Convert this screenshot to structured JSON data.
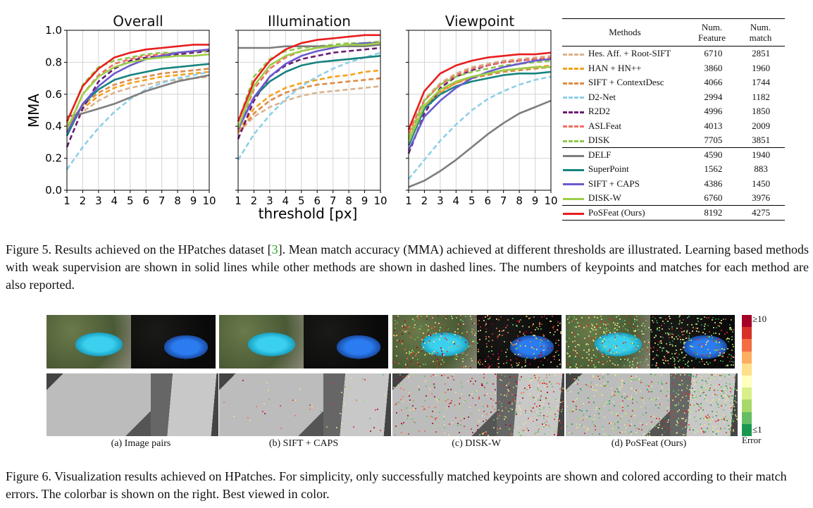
{
  "figure5": {
    "panel_titles": [
      "Overall",
      "Illumination",
      "Viewpoint"
    ],
    "y_axis_label": "MMA",
    "x_axis_label": "threshold [px]",
    "table": {
      "headers": {
        "methods": "Methods",
        "feature": [
          "Num.",
          "Feature"
        ],
        "match": [
          "Num.",
          "match"
        ]
      },
      "rows": [
        {
          "name": "Hes. Aff. + Root-SIFT",
          "feature": "6710",
          "match": "2851"
        },
        {
          "name": "HAN + HN++",
          "feature": "3860",
          "match": "1960"
        },
        {
          "name": "SIFT + ContextDesc",
          "feature": "4066",
          "match": "1744"
        },
        {
          "name": "D2-Net",
          "feature": "2994",
          "match": "1182"
        },
        {
          "name": "R2D2",
          "feature": "4996",
          "match": "1850"
        },
        {
          "name": "ASLFeat",
          "feature": "4013",
          "match": "2009"
        },
        {
          "name": "DISK",
          "feature": "7705",
          "match": "3851"
        },
        {
          "name": "DELF",
          "feature": "4590",
          "match": "1940"
        },
        {
          "name": "SuperPoint",
          "feature": "1562",
          "match": "883"
        },
        {
          "name": "SIFT + CAPS",
          "feature": "4386",
          "match": "1450"
        },
        {
          "name": "DISK-W",
          "feature": "6760",
          "match": "3976"
        },
        {
          "name": "PoSFeat (Ours)",
          "feature": "8192",
          "match": "4275"
        }
      ]
    },
    "caption_parts": [
      "Figure 5.  Results achieved on the HPatches dataset [",
      "3",
      "].  Mean match accuracy (MMA) achieved at different thresholds are illustrated. Learning based methods with weak supervision are shown in solid lines while other methods are shown in dashed lines. The numbers of keypoints and matches for each method are also reported."
    ]
  },
  "chart_data": [
    {
      "type": "line",
      "title": "Overall",
      "xlabel": "threshold [px]",
      "ylabel": "MMA",
      "x": [
        1,
        2,
        3,
        4,
        5,
        6,
        7,
        8,
        9,
        10
      ],
      "xlim": [
        1,
        10
      ],
      "ylim": [
        0,
        1
      ],
      "series": [
        {
          "name": "Hes. Aff. + Root-SIFT",
          "values": [
            0.4,
            0.49,
            0.56,
            0.61,
            0.64,
            0.66,
            0.68,
            0.69,
            0.7,
            0.71
          ]
        },
        {
          "name": "HAN + HN++",
          "values": [
            0.38,
            0.51,
            0.59,
            0.64,
            0.67,
            0.69,
            0.71,
            0.72,
            0.73,
            0.74
          ]
        },
        {
          "name": "SIFT + ContextDesc",
          "values": [
            0.4,
            0.53,
            0.61,
            0.66,
            0.69,
            0.71,
            0.73,
            0.74,
            0.75,
            0.76
          ]
        },
        {
          "name": "D2-Net",
          "values": [
            0.13,
            0.27,
            0.39,
            0.49,
            0.57,
            0.63,
            0.67,
            0.7,
            0.72,
            0.74
          ]
        },
        {
          "name": "R2D2",
          "values": [
            0.27,
            0.51,
            0.68,
            0.76,
            0.81,
            0.83,
            0.84,
            0.85,
            0.86,
            0.87
          ]
        },
        {
          "name": "ASLFeat",
          "values": [
            0.37,
            0.6,
            0.72,
            0.79,
            0.82,
            0.84,
            0.85,
            0.86,
            0.87,
            0.88
          ]
        },
        {
          "name": "DISK",
          "values": [
            0.42,
            0.66,
            0.77,
            0.81,
            0.83,
            0.85,
            0.86,
            0.86,
            0.87,
            0.87
          ]
        },
        {
          "name": "DELF",
          "values": [
            0.46,
            0.48,
            0.51,
            0.54,
            0.58,
            0.62,
            0.65,
            0.68,
            0.7,
            0.72
          ]
        },
        {
          "name": "SuperPoint",
          "values": [
            0.34,
            0.54,
            0.63,
            0.69,
            0.72,
            0.74,
            0.76,
            0.77,
            0.78,
            0.79
          ]
        },
        {
          "name": "SIFT + CAPS",
          "values": [
            0.36,
            0.54,
            0.65,
            0.73,
            0.78,
            0.82,
            0.84,
            0.86,
            0.87,
            0.88
          ]
        },
        {
          "name": "DISK-W",
          "values": [
            0.38,
            0.6,
            0.71,
            0.77,
            0.8,
            0.82,
            0.83,
            0.84,
            0.84,
            0.85
          ]
        },
        {
          "name": "PoSFeat (Ours)",
          "values": [
            0.43,
            0.65,
            0.76,
            0.83,
            0.86,
            0.88,
            0.89,
            0.9,
            0.91,
            0.91
          ]
        }
      ]
    },
    {
      "type": "line",
      "title": "Illumination",
      "xlabel": "threshold [px]",
      "ylabel": "",
      "x": [
        1,
        2,
        3,
        4,
        5,
        6,
        7,
        8,
        9,
        10
      ],
      "xlim": [
        1,
        10
      ],
      "ylim": [
        0,
        1
      ],
      "series": [
        {
          "name": "Hes. Aff. + Root-SIFT",
          "values": [
            0.36,
            0.46,
            0.52,
            0.56,
            0.59,
            0.61,
            0.62,
            0.63,
            0.64,
            0.65
          ]
        },
        {
          "name": "HAN + HN++",
          "values": [
            0.37,
            0.51,
            0.59,
            0.64,
            0.67,
            0.69,
            0.71,
            0.72,
            0.74,
            0.75
          ]
        },
        {
          "name": "SIFT + ContextDesc",
          "values": [
            0.36,
            0.48,
            0.56,
            0.61,
            0.64,
            0.66,
            0.67,
            0.68,
            0.69,
            0.7
          ]
        },
        {
          "name": "D2-Net",
          "values": [
            0.19,
            0.35,
            0.47,
            0.57,
            0.65,
            0.71,
            0.76,
            0.8,
            0.83,
            0.86
          ]
        },
        {
          "name": "R2D2",
          "values": [
            0.32,
            0.56,
            0.71,
            0.78,
            0.82,
            0.84,
            0.86,
            0.87,
            0.88,
            0.89
          ]
        },
        {
          "name": "ASLFeat",
          "values": [
            0.38,
            0.63,
            0.76,
            0.83,
            0.87,
            0.89,
            0.9,
            0.91,
            0.92,
            0.93
          ]
        },
        {
          "name": "DISK",
          "values": [
            0.43,
            0.71,
            0.82,
            0.87,
            0.89,
            0.9,
            0.91,
            0.92,
            0.92,
            0.93
          ]
        },
        {
          "name": "DELF",
          "values": [
            0.89,
            0.89,
            0.89,
            0.9,
            0.9,
            0.9,
            0.9,
            0.9,
            0.9,
            0.91
          ]
        },
        {
          "name": "SuperPoint",
          "values": [
            0.39,
            0.58,
            0.68,
            0.74,
            0.78,
            0.8,
            0.81,
            0.82,
            0.83,
            0.84
          ]
        },
        {
          "name": "SIFT + CAPS",
          "values": [
            0.38,
            0.58,
            0.71,
            0.79,
            0.84,
            0.87,
            0.89,
            0.91,
            0.92,
            0.92
          ]
        },
        {
          "name": "DISK-W",
          "values": [
            0.39,
            0.65,
            0.78,
            0.84,
            0.87,
            0.89,
            0.9,
            0.91,
            0.91,
            0.92
          ]
        },
        {
          "name": "PoSFeat (Ours)",
          "values": [
            0.43,
            0.68,
            0.81,
            0.88,
            0.92,
            0.94,
            0.95,
            0.96,
            0.97,
            0.97
          ]
        }
      ]
    },
    {
      "type": "line",
      "title": "Viewpoint",
      "xlabel": "threshold [px]",
      "ylabel": "",
      "x": [
        1,
        2,
        3,
        4,
        5,
        6,
        7,
        8,
        9,
        10
      ],
      "xlim": [
        1,
        10
      ],
      "ylim": [
        0,
        1
      ],
      "series": [
        {
          "name": "Hes. Aff. + Root-SIFT",
          "values": [
            0.37,
            0.57,
            0.67,
            0.73,
            0.77,
            0.79,
            0.81,
            0.82,
            0.83,
            0.84
          ]
        },
        {
          "name": "HAN + HN++",
          "values": [
            0.34,
            0.52,
            0.61,
            0.67,
            0.71,
            0.73,
            0.75,
            0.76,
            0.77,
            0.78
          ]
        },
        {
          "name": "SIFT + ContextDesc",
          "values": [
            0.32,
            0.52,
            0.62,
            0.67,
            0.7,
            0.72,
            0.74,
            0.75,
            0.76,
            0.77
          ]
        },
        {
          "name": "D2-Net",
          "values": [
            0.07,
            0.19,
            0.31,
            0.41,
            0.5,
            0.57,
            0.62,
            0.66,
            0.69,
            0.71
          ]
        },
        {
          "name": "R2D2",
          "values": [
            0.23,
            0.48,
            0.64,
            0.71,
            0.75,
            0.78,
            0.8,
            0.81,
            0.82,
            0.82
          ]
        },
        {
          "name": "ASLFeat",
          "values": [
            0.36,
            0.56,
            0.66,
            0.72,
            0.76,
            0.78,
            0.8,
            0.81,
            0.82,
            0.83
          ]
        },
        {
          "name": "DISK",
          "values": [
            0.33,
            0.56,
            0.66,
            0.71,
            0.74,
            0.76,
            0.78,
            0.79,
            0.8,
            0.81
          ]
        },
        {
          "name": "DELF",
          "values": [
            0.02,
            0.06,
            0.12,
            0.19,
            0.27,
            0.35,
            0.42,
            0.48,
            0.52,
            0.56
          ]
        },
        {
          "name": "SuperPoint",
          "values": [
            0.28,
            0.51,
            0.6,
            0.65,
            0.68,
            0.7,
            0.72,
            0.73,
            0.73,
            0.74
          ]
        },
        {
          "name": "SIFT + CAPS",
          "values": [
            0.25,
            0.46,
            0.56,
            0.64,
            0.7,
            0.74,
            0.77,
            0.79,
            0.81,
            0.82
          ]
        },
        {
          "name": "DISK-W",
          "values": [
            0.3,
            0.53,
            0.63,
            0.68,
            0.71,
            0.73,
            0.75,
            0.76,
            0.77,
            0.77
          ]
        },
        {
          "name": "PoSFeat (Ours)",
          "values": [
            0.38,
            0.62,
            0.73,
            0.78,
            0.81,
            0.83,
            0.84,
            0.85,
            0.85,
            0.86
          ]
        }
      ]
    }
  ],
  "series_style": [
    {
      "color": "#d9b38c",
      "dashed": true
    },
    {
      "color": "#f5a21b",
      "dashed": true
    },
    {
      "color": "#e08a45",
      "dashed": true
    },
    {
      "color": "#8ecfe8",
      "dashed": true
    },
    {
      "color": "#6a1b72",
      "dashed": true
    },
    {
      "color": "#f07060",
      "dashed": true
    },
    {
      "color": "#8fc84a",
      "dashed": true
    },
    {
      "color": "#7d7d7d",
      "dashed": false
    },
    {
      "color": "#16837f",
      "dashed": false
    },
    {
      "color": "#6a5acd",
      "dashed": false
    },
    {
      "color": "#9cce4a",
      "dashed": false
    },
    {
      "color": "#e81e1e",
      "dashed": false
    }
  ],
  "figure6": {
    "subcaptions": [
      "(a) Image pairs",
      "(b) SIFT + CAPS",
      "(c) DISK-W",
      "(d) PoSFeat (Ours)"
    ],
    "colorbar": {
      "top_label": "≥10",
      "bottom_label": "≤1",
      "title": "Error",
      "colors": [
        "#a50026",
        "#d73027",
        "#f46d43",
        "#fdae61",
        "#fee08b",
        "#ffffbf",
        "#d9ef8b",
        "#a6d96a",
        "#66bd63",
        "#1a9850"
      ]
    },
    "caption": "Figure 6. Visualization results achieved on HPatches. For simplicity, only successfully matched keypoints are shown and colored according to their match errors. The colorbar is shown on the right. Best viewed in color."
  }
}
